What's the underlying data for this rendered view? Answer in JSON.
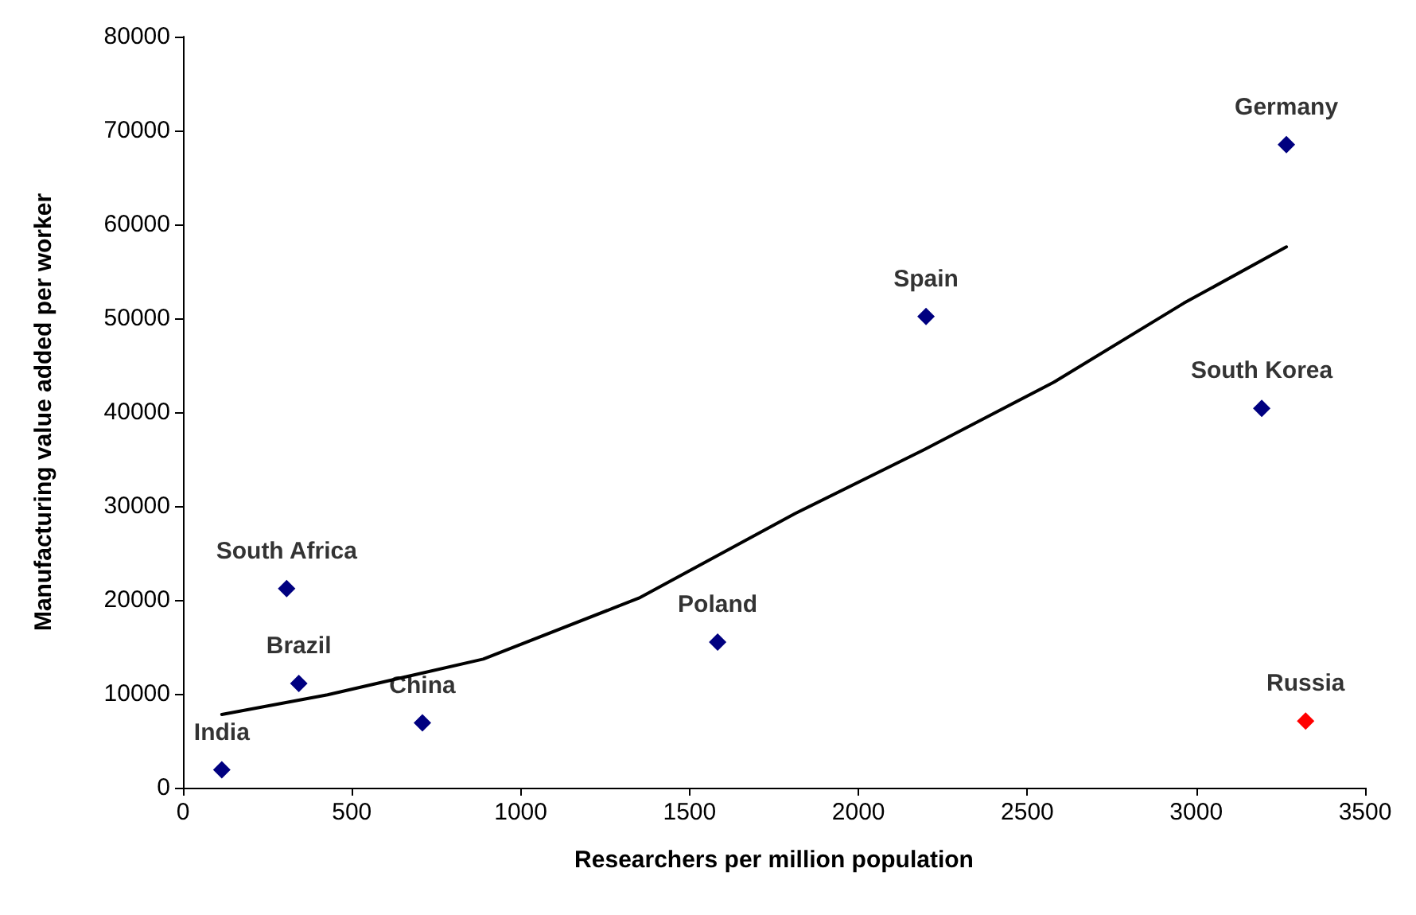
{
  "chart_data": {
    "type": "scatter",
    "xlabel": "Researchers per million population",
    "ylabel": "Manufacturing value added per worker",
    "xlim": [
      0,
      3500
    ],
    "xticks": [
      0,
      500,
      1000,
      1500,
      2000,
      2500,
      3000,
      3500
    ],
    "ylim": [
      0,
      80000
    ],
    "yticks": [
      0,
      10000,
      20000,
      30000,
      40000,
      50000,
      60000,
      70000,
      80000
    ],
    "grid": false,
    "marker": "diamond",
    "series": [
      {
        "x": [
          115,
          307,
          343,
          709,
          1583,
          2200,
          3267,
          3194,
          3324
        ],
        "values": [
          1900,
          21200,
          11100,
          6900,
          15500,
          50200,
          68500,
          40400,
          7100
        ],
        "colors": [
          "#000080",
          "#000080",
          "#000080",
          "#000080",
          "#000080",
          "#000080",
          "#000080",
          "#000080",
          "#ff0000"
        ]
      },
      {
        "type": "line",
        "color": "#000000",
        "marker": "none",
        "line_style": "solid",
        "x": [
          115,
          428,
          889,
          1350,
          1812,
          2194,
          2579,
          2963,
          3267
        ],
        "values": [
          7800,
          9900,
          13700,
          20200,
          29200,
          36000,
          43200,
          51600,
          57600
        ]
      }
    ],
    "annotations": [
      {
        "text": "India",
        "x": 115,
        "y": 1900
      },
      {
        "text": "South Africa",
        "x": 307,
        "y": 21200
      },
      {
        "text": "Brazil",
        "x": 343,
        "y": 11100
      },
      {
        "text": "China",
        "x": 709,
        "y": 6900
      },
      {
        "text": "Poland",
        "x": 1583,
        "y": 15500
      },
      {
        "text": "Spain",
        "x": 2200,
        "y": 50200
      },
      {
        "text": "Germany",
        "x": 3267,
        "y": 68500
      },
      {
        "text": "South Korea",
        "x": 3194,
        "y": 40400
      },
      {
        "text": "Russia",
        "x": 3324,
        "y": 7100
      }
    ]
  }
}
